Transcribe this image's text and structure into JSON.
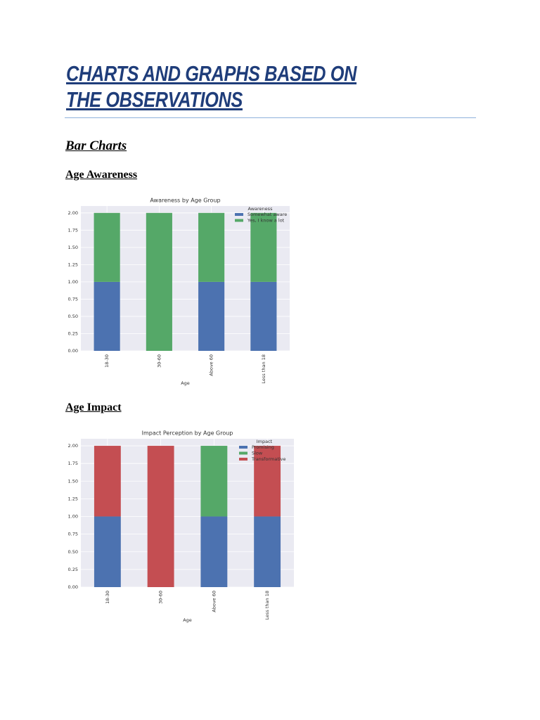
{
  "header": {
    "title": "CHARTS AND GRAPHS BASED ON THE OBSERVATIONS"
  },
  "section": {
    "title": "Bar Charts",
    "subsections": [
      "Age Awareness",
      "Age Impact"
    ]
  },
  "chart_data": [
    {
      "type": "stacked_bar",
      "title": "Awareness by Age Group",
      "x_label": "Age",
      "categories": [
        "18-30",
        "30-60",
        "Above 60",
        "Less than 18"
      ],
      "legend_title": "Awareness",
      "legend": "upper right",
      "grid": true,
      "series": [
        {
          "name": "Somewhat aware",
          "color": "#4c72b0",
          "values": [
            1,
            0,
            1,
            1
          ]
        },
        {
          "name": "Yes, I know a lot",
          "color": "#55a868",
          "values": [
            1,
            2,
            1,
            1
          ]
        }
      ],
      "ylim": [
        0,
        2.1
      ],
      "yticks": [
        {
          "value": 0,
          "label": "0.00"
        },
        {
          "value": 0.25,
          "label": "0.25"
        },
        {
          "value": 0.5,
          "label": "0.50"
        },
        {
          "value": 0.75,
          "label": "0.75"
        },
        {
          "value": 1,
          "label": "1.00"
        },
        {
          "value": 1.25,
          "label": "1.25"
        },
        {
          "value": 1.5,
          "label": "1.50"
        },
        {
          "value": 1.75,
          "label": "1.75"
        },
        {
          "value": 2,
          "label": "2.00"
        }
      ]
    },
    {
      "type": "stacked_bar",
      "title": "Impact Perception by Age Group",
      "x_label": "Age",
      "categories": [
        "18-30",
        "30-60",
        "Above 60",
        "Less than 18"
      ],
      "legend_title": "Impact",
      "legend": "upper right",
      "grid": true,
      "series": [
        {
          "name": "Promising",
          "color": "#4c72b0",
          "values": [
            1,
            0,
            1,
            1
          ]
        },
        {
          "name": "Slow",
          "color": "#55a868",
          "values": [
            0,
            0,
            1,
            0
          ]
        },
        {
          "name": "Transformative",
          "color": "#c44e52",
          "values": [
            1,
            2,
            0,
            1
          ]
        }
      ],
      "ylim": [
        0,
        2.1
      ],
      "yticks": [
        {
          "value": 0,
          "label": "0.00"
        },
        {
          "value": 0.25,
          "label": "0.25"
        },
        {
          "value": 0.5,
          "label": "0.50"
        },
        {
          "value": 0.75,
          "label": "0.75"
        },
        {
          "value": 1,
          "label": "1.00"
        },
        {
          "value": 1.25,
          "label": "1.25"
        },
        {
          "value": 1.5,
          "label": "1.50"
        },
        {
          "value": 1.75,
          "label": "1.75"
        },
        {
          "value": 2,
          "label": "2.00"
        }
      ]
    }
  ]
}
